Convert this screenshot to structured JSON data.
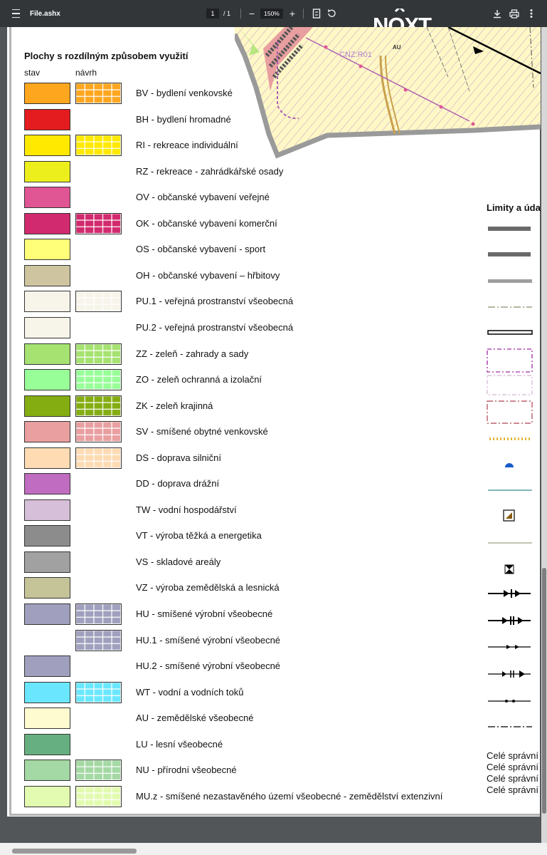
{
  "toolbar": {
    "filename": "File.ashx",
    "page_current": "1",
    "page_separator": "/",
    "page_total": "1",
    "zoom": "150%",
    "zoom_out": "−",
    "zoom_in": "+",
    "logo_text": "NOXT"
  },
  "map": {
    "labels": [
      "CNZ:R01",
      "AU"
    ]
  },
  "legend": {
    "title": "Plochy s rozdílným způsobem využití",
    "col_stav": "stav",
    "col_navrh": "návrh",
    "rows": [
      {
        "label": "BV - bydlení venkovské",
        "color": "#ffa61f",
        "stav": true,
        "navrh": true
      },
      {
        "label": "BH - bydlení hromadné",
        "color": "#e41b1f",
        "stav": true,
        "navrh": false
      },
      {
        "label": "RI - rekreace individuální",
        "color": "#ffe900",
        "stav": true,
        "navrh": true
      },
      {
        "label": "RZ - rekreace - zahrádkářské osady",
        "color": "#edef1d",
        "stav": true,
        "navrh": false
      },
      {
        "label": "OV - občanské vybavení veřejné",
        "color": "#e05694",
        "stav": true,
        "navrh": false
      },
      {
        "label": "OK - občanské vybavení komerční",
        "color": "#d22a6e",
        "stav": true,
        "navrh": true
      },
      {
        "label": "OS - občanské vybavení - sport",
        "color": "#ffff7a",
        "stav": true,
        "navrh": false
      },
      {
        "label": "OH - občanské vybavení – hřbitovy",
        "color": "#cec5a0",
        "stav": true,
        "navrh": false
      },
      {
        "label": "PU.1 - veřejná prostranství všeobecná",
        "color": "#f7f4ea",
        "stav": true,
        "navrh": true
      },
      {
        "label": "PU.2 - veřejná prostranství všeobecná",
        "color": "#f7f4ea",
        "stav": true,
        "navrh": false
      },
      {
        "label": "ZZ - zeleň - zahrady a sady",
        "color": "#a6e271",
        "stav": true,
        "navrh": true
      },
      {
        "label": "ZO - zeleň ochranná a izolační",
        "color": "#98ff98",
        "stav": true,
        "navrh": true
      },
      {
        "label": "ZK - zeleň krajinná",
        "color": "#84ad12",
        "stav": true,
        "navrh": true
      },
      {
        "label": "SV - smíšené obytné venkovské",
        "color": "#e99fa0",
        "stav": true,
        "navrh": true
      },
      {
        "label": "DS - doprava silniční",
        "color": "#fedbb3",
        "stav": true,
        "navrh": true
      },
      {
        "label": "DD - doprava drážní",
        "color": "#c06cc0",
        "stav": true,
        "navrh": false
      },
      {
        "label": "TW - vodní hospodářství",
        "color": "#d6bfd9",
        "stav": true,
        "navrh": false
      },
      {
        "label": "VT - výroba těžká a energetika",
        "color": "#8c8c8c",
        "stav": true,
        "navrh": false
      },
      {
        "label": "VS - skladové areály",
        "color": "#a1a1a1",
        "stav": true,
        "navrh": false
      },
      {
        "label": "VZ - výroba zemědělská a lesnická",
        "color": "#c4c498",
        "stav": true,
        "navrh": false
      },
      {
        "label": "HU - smíšené výrobní všeobecné",
        "color": "#a0a0be",
        "stav": true,
        "navrh": true
      },
      {
        "label": "HU.1 - smíšené výrobní všeobecné",
        "color": "#a0a0be",
        "stav": false,
        "navrh": true
      },
      {
        "label": "HU.2 - smíšené výrobní všeobecné",
        "color": "#a0a0be",
        "stav": true,
        "navrh": false
      },
      {
        "label": "WT - vodní a vodních toků",
        "color": "#6ae7ff",
        "stav": true,
        "navrh": true
      },
      {
        "label": "AU - zemědělské všeobecné",
        "color": "#fffbd0",
        "stav": true,
        "navrh": false
      },
      {
        "label": "LU - lesní všeobecné",
        "color": "#66af80",
        "stav": true,
        "navrh": false
      },
      {
        "label": "NU - přírodní všeobecné",
        "color": "#a4d8a4",
        "stav": true,
        "navrh": true
      },
      {
        "label": "MU.z - smíšené nezastavěného území všeobecné - zemědělství extenzivní",
        "color": "#e2fbb0",
        "stav": true,
        "navrh": true
      }
    ]
  },
  "limits": {
    "title": "Limity a úda",
    "cele": [
      "Celé správní",
      "Celé správní",
      "Celé správní",
      "Celé správní"
    ]
  }
}
